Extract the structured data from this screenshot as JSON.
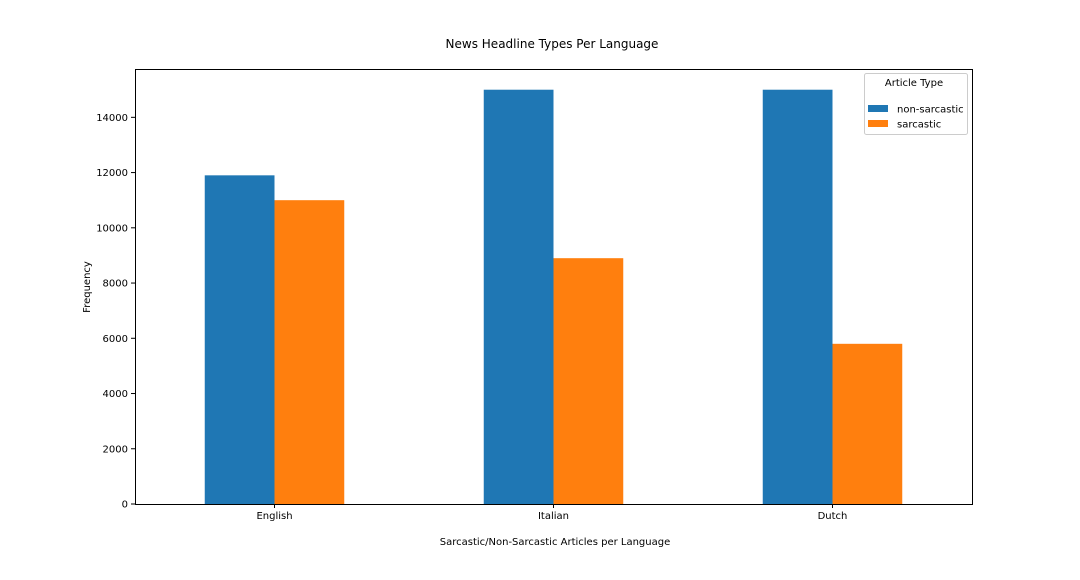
{
  "chart_data": {
    "type": "bar",
    "title": "News Headline Types Per Language",
    "xlabel": "Sarcastic/Non-Sarcastic Articles per Language",
    "ylabel": "Frequency",
    "categories": [
      "English",
      "Italian",
      "Dutch"
    ],
    "series": [
      {
        "name": "non-sarcastic",
        "color": "#1f77b4",
        "values": [
          11900,
          15000,
          15000
        ]
      },
      {
        "name": "sarcastic",
        "color": "#ff7f0e",
        "values": [
          11000,
          8900,
          5800
        ]
      }
    ],
    "ylim": [
      0,
      15750
    ],
    "yticks": [
      0,
      2000,
      4000,
      6000,
      8000,
      10000,
      12000,
      14000
    ],
    "grid": false,
    "legend": {
      "title": "Article Type",
      "position": "top-right"
    }
  }
}
